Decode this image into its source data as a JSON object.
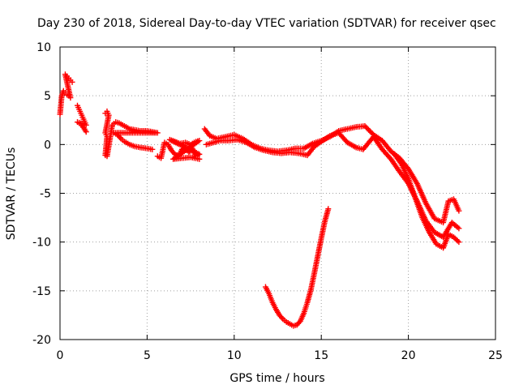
{
  "chart_data": {
    "type": "scatter",
    "title": "Day 230 of 2018, Sidereal Day-to-day VTEC variation (SDTVAR) for receiver qsec",
    "xlabel": "GPS time / hours",
    "ylabel": "SDTVAR / TECUs",
    "xlim": [
      0,
      25
    ],
    "ylim": [
      -20,
      10
    ],
    "xticks": [
      0,
      5,
      10,
      15,
      20,
      25
    ],
    "yticks": [
      -20,
      -15,
      -10,
      -5,
      0,
      5,
      10
    ],
    "grid": true,
    "marker": "+",
    "color": "#ff0000",
    "series": [
      {
        "name": "cluster-early",
        "points": [
          [
            0.0,
            3.1
          ],
          [
            0.1,
            5.0
          ],
          [
            0.2,
            5.5
          ],
          [
            0.3,
            5.3
          ],
          [
            0.4,
            5.1
          ],
          [
            0.5,
            5.0
          ],
          [
            0.6,
            4.8
          ],
          [
            0.3,
            7.2
          ],
          [
            0.4,
            7.0
          ],
          [
            0.5,
            6.8
          ],
          [
            0.6,
            6.6
          ],
          [
            0.7,
            6.4
          ]
        ]
      },
      {
        "name": "cluster-1h",
        "points": [
          [
            1.0,
            4.0
          ],
          [
            1.1,
            3.6
          ],
          [
            1.2,
            3.2
          ],
          [
            1.3,
            2.8
          ],
          [
            1.4,
            2.4
          ],
          [
            1.5,
            2.0
          ],
          [
            1.0,
            2.3
          ],
          [
            1.2,
            2.1
          ],
          [
            1.4,
            1.6
          ],
          [
            1.5,
            1.3
          ]
        ]
      },
      {
        "name": "cluster-3h",
        "points": [
          [
            2.6,
            3.2
          ],
          [
            2.7,
            3.4
          ],
          [
            2.8,
            3.0
          ],
          [
            2.6,
            1.2
          ],
          [
            2.7,
            0.8
          ],
          [
            2.6,
            -1.1
          ],
          [
            2.7,
            -1.2
          ],
          [
            3.0,
            2.0
          ],
          [
            3.2,
            2.3
          ],
          [
            3.4,
            2.2
          ],
          [
            3.6,
            2.0
          ],
          [
            3.8,
            1.8
          ],
          [
            4.0,
            1.6
          ],
          [
            4.3,
            1.5
          ],
          [
            4.6,
            1.4
          ],
          [
            5.0,
            1.4
          ],
          [
            5.3,
            1.3
          ],
          [
            5.6,
            1.2
          ],
          [
            3.1,
            1.2
          ],
          [
            3.3,
            1.0
          ],
          [
            3.5,
            0.6
          ],
          [
            3.7,
            0.3
          ],
          [
            4.0,
            0.0
          ],
          [
            4.3,
            -0.2
          ],
          [
            4.6,
            -0.3
          ],
          [
            5.0,
            -0.4
          ],
          [
            5.3,
            -0.5
          ]
        ]
      },
      {
        "name": "cluster-6-8h",
        "points": [
          [
            5.6,
            -1.2
          ],
          [
            5.8,
            -1.4
          ],
          [
            6.0,
            0.2
          ],
          [
            6.2,
            0.0
          ],
          [
            6.4,
            -0.6
          ],
          [
            6.6,
            -1.0
          ],
          [
            6.8,
            -1.2
          ],
          [
            7.0,
            -0.5
          ],
          [
            7.2,
            -0.3
          ],
          [
            7.4,
            -0.8
          ],
          [
            7.6,
            -0.4
          ],
          [
            7.8,
            -1.2
          ],
          [
            8.0,
            -1.0
          ],
          [
            6.3,
            0.5
          ],
          [
            6.6,
            0.3
          ],
          [
            6.9,
            0.1
          ],
          [
            7.2,
            0.2
          ],
          [
            7.5,
            0.0
          ],
          [
            7.8,
            0.3
          ],
          [
            8.0,
            0.4
          ],
          [
            6.5,
            -1.5
          ],
          [
            7.0,
            -1.4
          ],
          [
            7.5,
            -1.3
          ],
          [
            8.0,
            -1.5
          ]
        ]
      },
      {
        "name": "trace-upper",
        "points": [
          [
            8.3,
            1.6
          ],
          [
            8.6,
            0.9
          ],
          [
            9.0,
            0.6
          ],
          [
            9.5,
            0.8
          ],
          [
            10.0,
            1.0
          ],
          [
            10.5,
            0.6
          ],
          [
            11.0,
            0.0
          ],
          [
            11.5,
            -0.4
          ],
          [
            12.0,
            -0.6
          ],
          [
            12.5,
            -0.7
          ],
          [
            13.0,
            -0.6
          ],
          [
            13.5,
            -0.4
          ],
          [
            14.0,
            -0.4
          ],
          [
            14.5,
            0.1
          ],
          [
            15.0,
            0.4
          ],
          [
            15.5,
            0.8
          ],
          [
            16.0,
            1.4
          ],
          [
            16.5,
            1.6
          ],
          [
            17.0,
            1.8
          ],
          [
            17.5,
            1.9
          ],
          [
            18.0,
            1.0
          ],
          [
            18.5,
            0.4
          ],
          [
            19.0,
            -0.7
          ],
          [
            19.5,
            -1.4
          ],
          [
            20.0,
            -2.5
          ],
          [
            20.5,
            -4.0
          ],
          [
            21.0,
            -6.0
          ],
          [
            21.5,
            -7.6
          ],
          [
            22.0,
            -8.0
          ],
          [
            22.3,
            -5.8
          ],
          [
            22.6,
            -5.6
          ],
          [
            22.9,
            -6.8
          ]
        ]
      },
      {
        "name": "trace-middle",
        "points": [
          [
            8.4,
            0.0
          ],
          [
            8.8,
            0.2
          ],
          [
            9.2,
            0.4
          ],
          [
            9.7,
            0.4
          ],
          [
            10.2,
            0.5
          ],
          [
            10.7,
            0.2
          ],
          [
            11.2,
            -0.3
          ],
          [
            11.7,
            -0.6
          ],
          [
            12.2,
            -0.8
          ],
          [
            12.7,
            -0.9
          ],
          [
            13.2,
            -0.8
          ],
          [
            13.7,
            -0.9
          ],
          [
            14.2,
            -1.1
          ],
          [
            14.6,
            -0.2
          ],
          [
            15.0,
            0.3
          ],
          [
            15.5,
            0.9
          ],
          [
            16.0,
            1.2
          ],
          [
            16.5,
            0.2
          ],
          [
            17.0,
            -0.3
          ],
          [
            17.4,
            -0.5
          ],
          [
            18.0,
            0.8
          ],
          [
            18.5,
            -0.5
          ],
          [
            19.0,
            -1.5
          ],
          [
            19.5,
            -2.8
          ],
          [
            20.0,
            -4.0
          ],
          [
            20.5,
            -5.8
          ],
          [
            21.0,
            -7.8
          ],
          [
            21.5,
            -9.0
          ],
          [
            22.0,
            -9.5
          ],
          [
            22.5,
            -8.0
          ],
          [
            22.9,
            -8.6
          ]
        ]
      },
      {
        "name": "trace-lower",
        "points": [
          [
            19.2,
            -1.0
          ],
          [
            19.6,
            -2.0
          ],
          [
            20.0,
            -3.5
          ],
          [
            20.4,
            -5.5
          ],
          [
            20.8,
            -7.5
          ],
          [
            21.2,
            -9.0
          ],
          [
            21.6,
            -10.2
          ],
          [
            22.0,
            -10.6
          ],
          [
            22.3,
            -9.2
          ],
          [
            22.6,
            -9.5
          ],
          [
            22.9,
            -10.0
          ]
        ]
      },
      {
        "name": "dip-curve",
        "points": [
          [
            11.8,
            -14.6
          ],
          [
            12.0,
            -15.3
          ],
          [
            12.2,
            -16.2
          ],
          [
            12.4,
            -16.9
          ],
          [
            12.6,
            -17.5
          ],
          [
            12.8,
            -17.9
          ],
          [
            13.0,
            -18.2
          ],
          [
            13.2,
            -18.4
          ],
          [
            13.4,
            -18.6
          ],
          [
            13.6,
            -18.5
          ],
          [
            13.8,
            -18.1
          ],
          [
            14.0,
            -17.3
          ],
          [
            14.2,
            -16.2
          ],
          [
            14.4,
            -14.9
          ],
          [
            14.6,
            -13.2
          ],
          [
            14.8,
            -11.4
          ],
          [
            15.0,
            -9.6
          ],
          [
            15.2,
            -7.9
          ],
          [
            15.4,
            -6.6
          ]
        ]
      }
    ]
  }
}
